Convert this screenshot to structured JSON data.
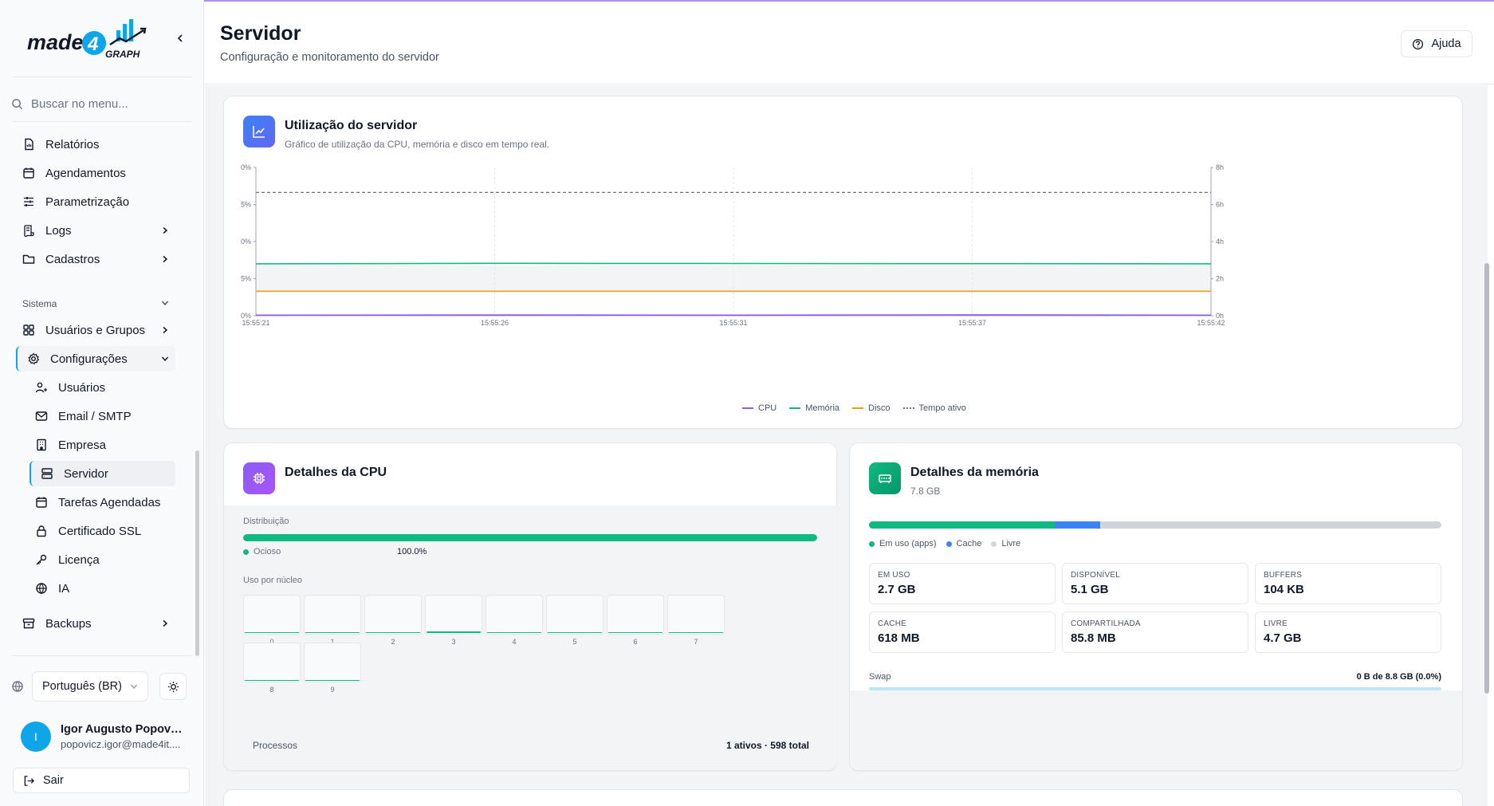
{
  "brand": {
    "name": "made4GRAPH",
    "colors": {
      "primary": "#0ea5e9",
      "purple": "#7c3aed",
      "green": "#10b981"
    }
  },
  "sidebar": {
    "search_placeholder": "Buscar no menu...",
    "items": [
      {
        "label": "Relatórios",
        "icon": "file-report-icon"
      },
      {
        "label": "Agendamentos",
        "icon": "calendar-icon"
      },
      {
        "label": "Parametrização",
        "icon": "sliders-icon"
      },
      {
        "label": "Logs",
        "icon": "scroll-icon"
      },
      {
        "label": "Cadastros",
        "icon": "folder-icon"
      }
    ],
    "section_label": "Sistema",
    "system_items": [
      {
        "label": "Usuários e Grupos",
        "icon": "grid-icon"
      },
      {
        "label": "Configurações",
        "icon": "gear-icon"
      }
    ],
    "config_items": [
      {
        "label": "Usuários",
        "icon": "users-icon"
      },
      {
        "label": "Email / SMTP",
        "icon": "mail-icon"
      },
      {
        "label": "Empresa",
        "icon": "building-icon"
      },
      {
        "label": "Servidor",
        "icon": "server-icon"
      },
      {
        "label": "Tarefas Agendadas",
        "icon": "calendar-icon"
      },
      {
        "label": "Certificado SSL",
        "icon": "lock-icon"
      },
      {
        "label": "Licença",
        "icon": "key-icon"
      },
      {
        "label": "IA",
        "icon": "globe-icon"
      }
    ],
    "backups_label": "Backups",
    "language": "Português (BR)",
    "user": {
      "initial": "I",
      "name": "Igor Augusto Popovi...",
      "email": "popovicz.igor@made4it...."
    },
    "logout_label": "Sair"
  },
  "header": {
    "title": "Servidor",
    "subtitle": "Configuração e monitoramento do servidor",
    "help_label": "Ajuda"
  },
  "usage_card": {
    "title": "Utilização do servidor",
    "subtitle": "Gráfico de utilização da CPU, memória e disco em tempo real."
  },
  "chart_data": {
    "type": "line",
    "title": "Utilização do servidor",
    "x": [
      "15:55:21",
      "15:55:26",
      "15:55:31",
      "15:55:37",
      "15:55:42"
    ],
    "y_left_ticks": [
      "0%",
      "5%",
      "0%",
      "5%",
      "0%"
    ],
    "y_right_ticks": [
      "8h",
      "6h",
      "4h",
      "2h",
      "0h"
    ],
    "y_left_range": [
      0,
      100
    ],
    "y_right_range": [
      0,
      8
    ],
    "grid": true,
    "legend_position": "bottom-center",
    "series": [
      {
        "name": "CPU",
        "color": "#8b5cf6",
        "axis": "left",
        "values": [
          0.4,
          0.5,
          0.4,
          0.6,
          0.4
        ]
      },
      {
        "name": "Memória",
        "color": "#10b981",
        "axis": "left",
        "values": [
          35,
          35.3,
          35.2,
          35.1,
          35
        ]
      },
      {
        "name": "Disco",
        "color": "#f59e0b",
        "axis": "left",
        "values": [
          16.5,
          16.5,
          16.5,
          16.5,
          16.5
        ]
      },
      {
        "name": "Tempo ativo",
        "color": "#6b7280",
        "axis": "right",
        "style": "dashed",
        "values": [
          6.65,
          6.65,
          6.65,
          6.65,
          6.65
        ]
      }
    ]
  },
  "cpu_card": {
    "title": "Detalhes da CPU",
    "distribution_label": "Distribuição",
    "idle_label": "Ocioso",
    "idle_value": "100.0%",
    "idle_fraction": 1.0,
    "per_core_label": "Uso por núcleo",
    "cores": [
      {
        "label": "0",
        "usage": 0
      },
      {
        "label": "1",
        "usage": 0
      },
      {
        "label": "2",
        "usage": 0
      },
      {
        "label": "3",
        "usage": 0.08
      },
      {
        "label": "4",
        "usage": 0
      },
      {
        "label": "5",
        "usage": 0
      },
      {
        "label": "6",
        "usage": 0
      },
      {
        "label": "7",
        "usage": 0
      },
      {
        "label": "8",
        "usage": 0
      },
      {
        "label": "9",
        "usage": 0
      }
    ],
    "processes_label": "Processos",
    "processes_value": "1 ativos · 598 total"
  },
  "memory_card": {
    "title": "Detalhes da memória",
    "total": "7.8 GB",
    "bar": {
      "used_fraction": 0.325,
      "cache_fraction": 0.079
    },
    "legend": [
      {
        "label": "Em uso (apps)",
        "color": "#10b981"
      },
      {
        "label": "Cache",
        "color": "#3b82f6"
      },
      {
        "label": "Livre",
        "color": "#d1d5db"
      }
    ],
    "stats": [
      {
        "label": "EM USO",
        "value": "2.7 GB"
      },
      {
        "label": "DISPONÍVEL",
        "value": "5.1 GB"
      },
      {
        "label": "BUFFERS",
        "value": "104 KB"
      },
      {
        "label": "CACHE",
        "value": "618 MB"
      },
      {
        "label": "COMPARTILHADA",
        "value": "85.8 MB"
      },
      {
        "label": "LIVRE",
        "value": "4.7 GB"
      }
    ],
    "swap_label": "Swap",
    "swap_value": "0 B de 8.8 GB (0.0%)",
    "swap_fraction": 0.0
  }
}
